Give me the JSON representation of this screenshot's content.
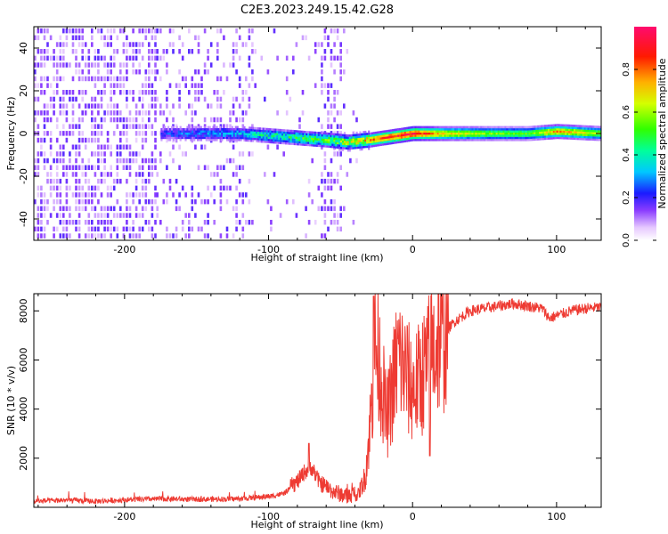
{
  "title": "C2E3.2023.249.15.42.G28",
  "colors": {
    "trace": "#ee3b33",
    "purple": "#7a1fe6",
    "frame": "#000000"
  },
  "chart_data": [
    {
      "type": "heatmap",
      "xlabel": "Height of straight line (km)",
      "ylabel": "Frequency (Hz)",
      "xlim": [
        -263,
        131
      ],
      "ylim": [
        -50,
        50
      ],
      "xticks": [
        -200,
        -100,
        0,
        100
      ],
      "yticks": [
        -40,
        -20,
        0,
        20,
        40
      ],
      "colorbar": {
        "label": "Normalized spectral amplitude",
        "range": [
          0,
          1
        ],
        "ticks": [
          0.0,
          0.2,
          0.4,
          0.6,
          0.8
        ],
        "tick_labels": [
          "0.0",
          "0.2",
          "0.4",
          "0.6",
          "0.8"
        ]
      },
      "ridge": {
        "x": [
          -175,
          -150,
          -120,
          -100,
          -80,
          -60,
          -45,
          -30,
          -20,
          0,
          20,
          50,
          80,
          100,
          131
        ],
        "frequency": [
          0,
          0,
          0,
          -1,
          -2,
          -3,
          -4,
          -3,
          -2,
          0,
          0,
          0,
          0,
          1,
          0
        ],
        "amplitude": [
          0.25,
          0.3,
          0.35,
          0.45,
          0.5,
          0.55,
          0.65,
          0.8,
          0.9,
          0.97,
          0.75,
          0.6,
          0.55,
          0.8,
          0.6
        ]
      },
      "noise_regions": [
        {
          "x": [
            -263,
            -178
          ],
          "level": "dense"
        },
        {
          "x": [
            -178,
            -110
          ],
          "level": "moderate"
        },
        {
          "x": [
            -110,
            -38
          ],
          "level": "sparse"
        }
      ]
    },
    {
      "type": "line",
      "xlabel": "Height of straight line (km)",
      "ylabel": "SNR (10 * v/v)",
      "xlim": [
        -263,
        131
      ],
      "ylim": [
        0,
        8700
      ],
      "xticks": [
        -200,
        -100,
        0,
        100
      ],
      "yticks": [
        2000,
        4000,
        6000,
        8000
      ],
      "x": [
        -263,
        -240,
        -220,
        -200,
        -175,
        -150,
        -120,
        -100,
        -90,
        -80,
        -75,
        -70,
        -65,
        -55,
        -45,
        -38,
        -33,
        -30,
        -28,
        -26,
        -22,
        -18,
        -15,
        -10,
        -5,
        0,
        5,
        10,
        15,
        20,
        30,
        40,
        50,
        60,
        70,
        80,
        90,
        95,
        100,
        110,
        120,
        131
      ],
      "y": [
        200,
        250,
        200,
        260,
        300,
        280,
        300,
        400,
        500,
        900,
        1300,
        1500,
        900,
        500,
        300,
        500,
        1200,
        3000,
        4500,
        6500,
        5500,
        3500,
        4500,
        6200,
        5500,
        4800,
        5200,
        5800,
        6500,
        7000,
        7600,
        8000,
        8100,
        8200,
        8300,
        8200,
        8100,
        7700,
        7800,
        8000,
        8100,
        8150
      ],
      "series": [
        {
          "values": [
            200,
            250,
            200,
            260,
            300,
            280,
            300,
            400,
            500,
            900,
            1300,
            1500,
            900,
            500,
            300,
            500,
            1200,
            3000,
            4500,
            6500,
            5500,
            3500,
            4500,
            6200,
            5500,
            4800,
            5200,
            5800,
            6500,
            7000,
            7600,
            8000,
            8100,
            8200,
            8300,
            8200,
            8100,
            7700,
            7800,
            8000,
            8100,
            8150
          ]
        }
      ],
      "spikes": [
        {
          "x": -27,
          "y": 8600
        },
        {
          "x": 12,
          "y": 2100
        },
        {
          "x": -72,
          "y": 2600
        }
      ]
    }
  ]
}
